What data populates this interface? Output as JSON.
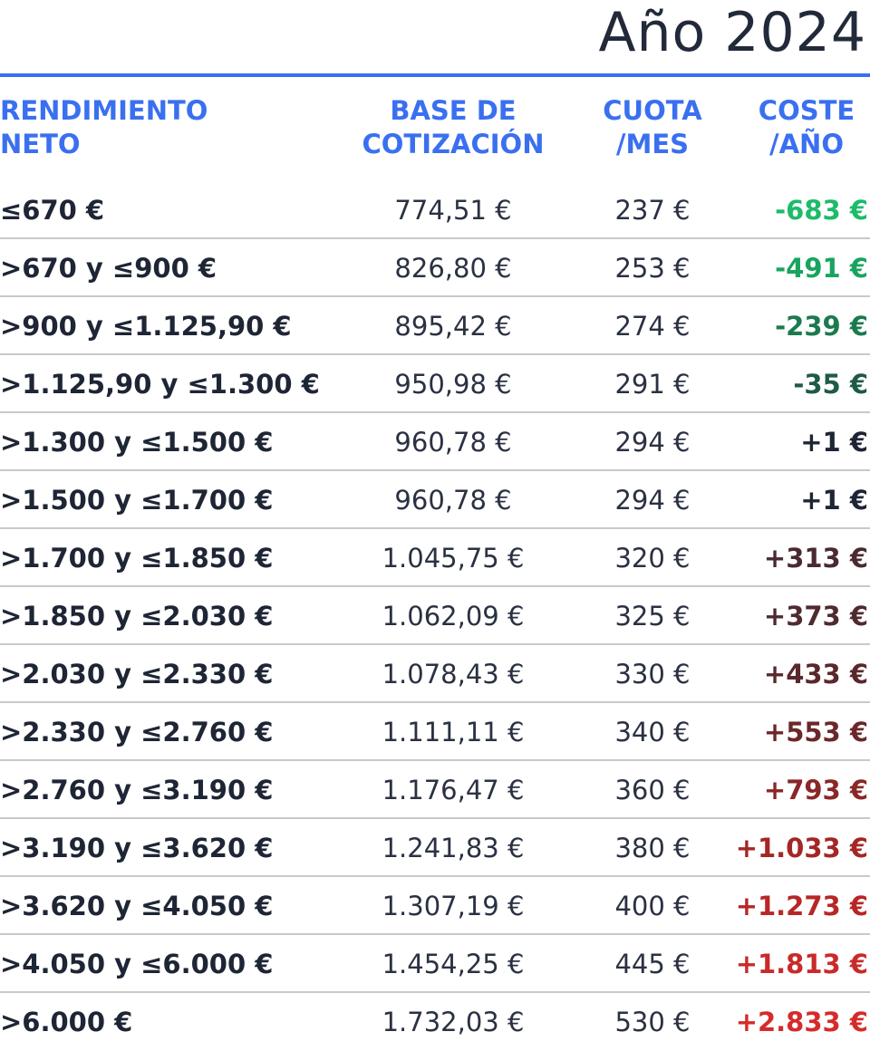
{
  "title": "Año 2024",
  "headers": {
    "neto": "RENDIMIENTO\nNETO",
    "base": "BASE DE\nCOTIZACIÓN",
    "cuota": "CUOTA\n/MES",
    "coste": "COSTE\n/AÑO"
  },
  "colors": {
    "accent": "#3a70f0",
    "text": "#1e2535",
    "divider": "#c9c9c9"
  },
  "rows": [
    {
      "neto": "≤670 €",
      "base": "774,51 €",
      "cuota": "237 €",
      "coste": "-683 €",
      "coste_color": "#1dbb6a"
    },
    {
      "neto": ">670 y ≤900 €",
      "base": "826,80 €",
      "cuota": "253 €",
      "coste": "-491 €",
      "coste_color": "#18a45e"
    },
    {
      "neto": ">900 y ≤1.125,90 €",
      "base": "895,42 €",
      "cuota": "274 €",
      "coste": "-239 €",
      "coste_color": "#1b7a4e"
    },
    {
      "neto": ">1.125,90 y ≤1.300 €",
      "base": "950,98 €",
      "cuota": "291 €",
      "coste": "-35 €",
      "coste_color": "#1f5a46"
    },
    {
      "neto": ">1.300 y ≤1.500 €",
      "base": "960,78 €",
      "cuota": "294 €",
      "coste": "+1 €",
      "coste_color": "#1e2535"
    },
    {
      "neto": ">1.500 y ≤1.700 €",
      "base": "960,78 €",
      "cuota": "294 €",
      "coste": "+1 €",
      "coste_color": "#1e2535"
    },
    {
      "neto": ">1.700 y ≤1.850 €",
      "base": "1.045,75 €",
      "cuota": "320 €",
      "coste": "+313 €",
      "coste_color": "#4a2a30"
    },
    {
      "neto": ">1.850 y ≤2.030 €",
      "base": "1.062,09 €",
      "cuota": "325 €",
      "coste": "+373 €",
      "coste_color": "#4f2a2f"
    },
    {
      "neto": ">2.030 y ≤2.330 €",
      "base": "1.078,43 €",
      "cuota": "330 €",
      "coste": "+433 €",
      "coste_color": "#5a282c"
    },
    {
      "neto": ">2.330 y ≤2.760 €",
      "base": "1.111,11 €",
      "cuota": "340 €",
      "coste": "+553 €",
      "coste_color": "#6b272a"
    },
    {
      "neto": ">2.760 y ≤3.190 €",
      "base": "1.176,47 €",
      "cuota": "360 €",
      "coste": "+793 €",
      "coste_color": "#8a2727"
    },
    {
      "neto": ">3.190 y ≤3.620 €",
      "base": "1.241,83 €",
      "cuota": "380 €",
      "coste": "+1.033 €",
      "coste_color": "#a52626"
    },
    {
      "neto": ">3.620 y ≤4.050 €",
      "base": "1.307,19 €",
      "cuota": "400 €",
      "coste": "+1.273 €",
      "coste_color": "#b82626"
    },
    {
      "neto": ">4.050 y ≤6.000 €",
      "base": "1.454,25 €",
      "cuota": "445 €",
      "coste": "+1.813 €",
      "coste_color": "#c92a2a"
    },
    {
      "neto": ">6.000 €",
      "base": "1.732,03 €",
      "cuota": "530 €",
      "coste": "+2.833 €",
      "coste_color": "#d62b2b"
    }
  ]
}
